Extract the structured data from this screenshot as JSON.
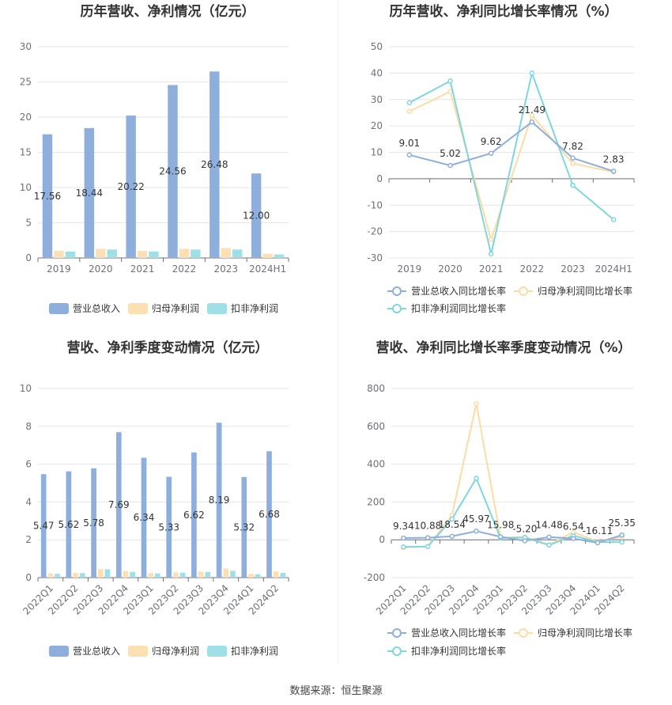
{
  "source": "数据来源：恒生聚源",
  "colors": {
    "revenue": "#8eaedc",
    "net_profit": "#fbe0b3",
    "deducted_profit": "#9fe0e6",
    "revenue_line": "#8eaedc",
    "net_line": "#fcdca5",
    "deducted_line": "#7fd6dd",
    "grid": "#e6e6e6",
    "axis": "#6e7079"
  },
  "chart_data": [
    {
      "id": "annual_bar",
      "type": "bar",
      "title": "历年营收、净利情况（亿元）",
      "categories": [
        "2019",
        "2020",
        "2021",
        "2022",
        "2023",
        "2024H1"
      ],
      "ylim": [
        0,
        30
      ],
      "yticks": [
        0,
        5,
        10,
        15,
        20,
        25,
        30
      ],
      "series": [
        {
          "name": "营业总收入",
          "values": [
            17.56,
            18.44,
            20.22,
            24.56,
            26.48,
            12.0
          ],
          "labels": [
            "17.56",
            "18.44",
            "20.22",
            "24.56",
            "26.48",
            "12.00"
          ]
        },
        {
          "name": "归母净利润",
          "values": [
            1.0,
            1.3,
            1.0,
            1.3,
            1.4,
            0.6
          ]
        },
        {
          "name": "扣非净利润",
          "values": [
            0.9,
            1.2,
            0.9,
            1.2,
            1.2,
            0.5
          ]
        }
      ],
      "legend": "bottom"
    },
    {
      "id": "annual_growth",
      "type": "line",
      "title": "历年营收、净利同比增长率情况（%）",
      "categories": [
        "2019",
        "2020",
        "2021",
        "2022",
        "2023",
        "2024H1"
      ],
      "ylim": [
        -30,
        50
      ],
      "yticks": [
        -30,
        -20,
        -10,
        0,
        10,
        20,
        30,
        40,
        50
      ],
      "series": [
        {
          "name": "营业总收入同比增长率",
          "values": [
            9.01,
            5.02,
            9.62,
            21.49,
            7.82,
            2.83
          ],
          "labels": [
            "9.01",
            "5.02",
            "9.62",
            "21.49",
            "7.82",
            "2.83"
          ]
        },
        {
          "name": "归母净利润同比增长率",
          "values": [
            25.5,
            33.0,
            -23.0,
            24.0,
            5.8,
            2.5
          ]
        },
        {
          "name": "扣非净利润同比增长率",
          "values": [
            28.8,
            37.0,
            -28.5,
            40.0,
            -2.5,
            -15.5
          ]
        }
      ],
      "legend": "bottom"
    },
    {
      "id": "quarterly_bar",
      "type": "bar",
      "title": "营收、净利季度变动情况（亿元）",
      "categories": [
        "2022Q1",
        "2022Q2",
        "2022Q3",
        "2022Q4",
        "2023Q1",
        "2023Q2",
        "2023Q3",
        "2023Q4",
        "2024Q1",
        "2024Q2"
      ],
      "ylim": [
        0,
        10
      ],
      "yticks": [
        0,
        2,
        4,
        6,
        8,
        10
      ],
      "series": [
        {
          "name": "营业总收入",
          "values": [
            5.47,
            5.62,
            5.78,
            7.69,
            6.34,
            5.33,
            6.62,
            8.19,
            5.32,
            6.68
          ],
          "labels": [
            "5.47",
            "5.62",
            "5.78",
            "7.69",
            "6.34",
            "5.33",
            "6.62",
            "8.19",
            "5.32",
            "6.68"
          ]
        },
        {
          "name": "归母净利润",
          "values": [
            0.22,
            0.25,
            0.45,
            0.35,
            0.24,
            0.28,
            0.32,
            0.48,
            0.2,
            0.33
          ]
        },
        {
          "name": "扣非净利润",
          "values": [
            0.2,
            0.24,
            0.44,
            0.3,
            0.22,
            0.26,
            0.3,
            0.36,
            0.18,
            0.25
          ]
        }
      ],
      "legend": "bottom"
    },
    {
      "id": "quarterly_growth",
      "type": "line",
      "title": "营收、净利同比增长率季度变动情况（%）",
      "categories": [
        "2022Q1",
        "2022Q2",
        "2022Q3",
        "2022Q4",
        "2023Q1",
        "2023Q2",
        "2023Q3",
        "2023Q4",
        "2024Q1",
        "2024Q2"
      ],
      "ylim": [
        -200,
        800
      ],
      "yticks": [
        -200,
        0,
        200,
        400,
        600,
        800
      ],
      "series": [
        {
          "name": "营业总收入同比增长率",
          "values": [
            9.34,
            10.88,
            18.54,
            45.97,
            15.98,
            -5.2,
            14.48,
            6.54,
            -16.11,
            25.35
          ],
          "labels": [
            "9.34",
            "10.88",
            "18.54",
            "45.97",
            "15.98",
            "-5.20",
            "14.48",
            "6.54",
            "-16.11",
            "25.35"
          ]
        },
        {
          "name": "归母净利润同比增长率",
          "values": [
            -40,
            -35,
            130,
            720,
            10,
            15,
            -25,
            40,
            -10,
            15
          ]
        },
        {
          "name": "扣非净利润同比增长率",
          "values": [
            -38,
            -36,
            110,
            325,
            10,
            12,
            -28,
            22,
            -12,
            -12
          ]
        }
      ],
      "legend": "bottom"
    }
  ]
}
